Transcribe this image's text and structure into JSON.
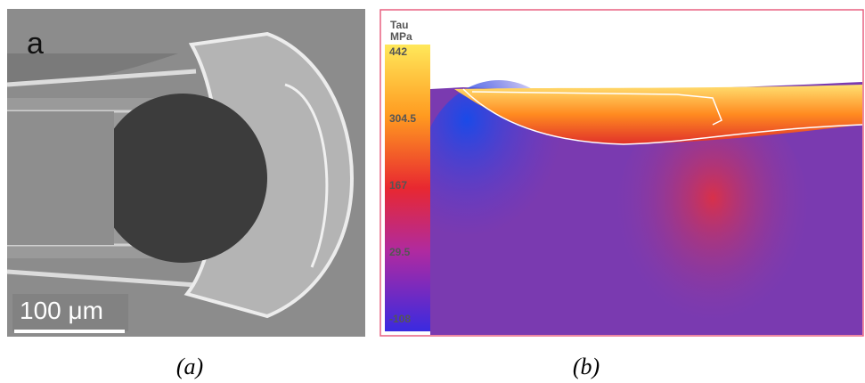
{
  "panel_a": {
    "label": "a",
    "scale_bar": "100 μm",
    "caption": "(a)"
  },
  "panel_b": {
    "colorbar": {
      "title": "Tau",
      "unit": "MPa",
      "labels": [
        442,
        304.5,
        167,
        29.5,
        -108
      ]
    },
    "caption": "(b)"
  }
}
